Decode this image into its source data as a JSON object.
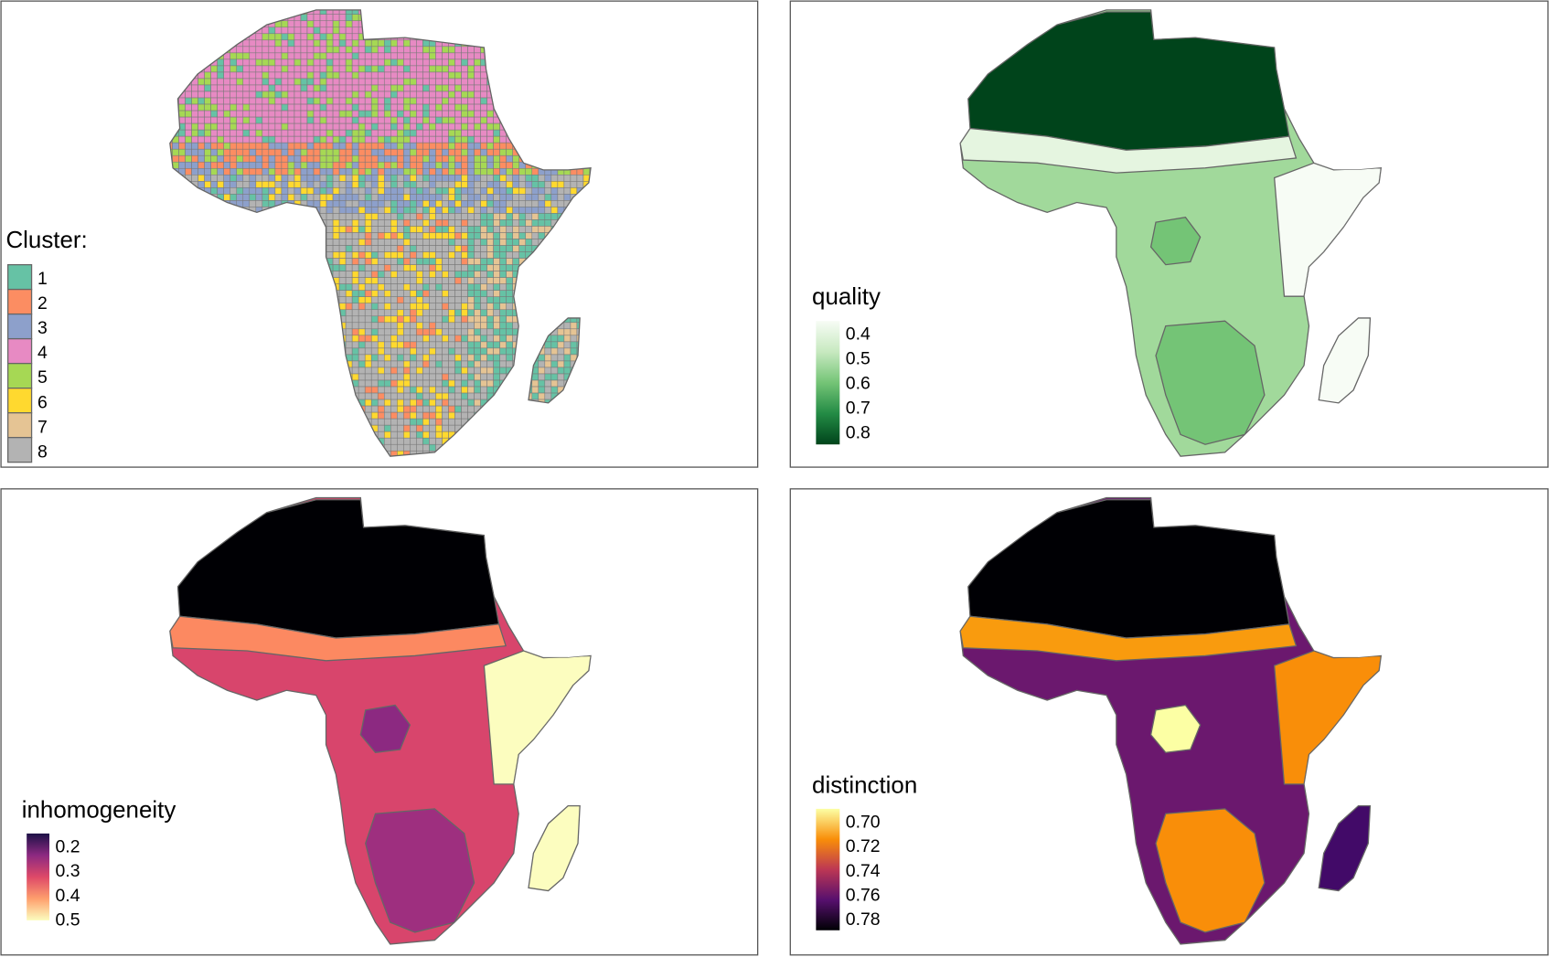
{
  "panels": {
    "cluster": {
      "legend_title": "Cluster:",
      "items": [
        {
          "label": "1",
          "color": "#66c2a5"
        },
        {
          "label": "2",
          "color": "#fc8d62"
        },
        {
          "label": "3",
          "color": "#8da0cb"
        },
        {
          "label": "4",
          "color": "#e78ac3"
        },
        {
          "label": "5",
          "color": "#a6d854"
        },
        {
          "label": "6",
          "color": "#ffd92f"
        },
        {
          "label": "7",
          "color": "#e5c494"
        },
        {
          "label": "8",
          "color": "#b3b3b3"
        }
      ]
    },
    "quality": {
      "legend_title": "quality",
      "ticks": [
        "0.4",
        "0.5",
        "0.6",
        "0.7",
        "0.8"
      ],
      "colors": [
        "#f7fcf5",
        "#c7e9c0",
        "#74c476",
        "#238b45",
        "#00441b"
      ]
    },
    "inhomogeneity": {
      "legend_title": "inhomogeneity",
      "ticks": [
        "0.2",
        "0.3",
        "0.4",
        "0.5"
      ],
      "colors": [
        "#1d1147",
        "#8c2981",
        "#de4968",
        "#fe9f6d",
        "#fcfdbf"
      ]
    },
    "distinction": {
      "legend_title": "distinction",
      "ticks": [
        "0.70",
        "0.72",
        "0.74",
        "0.76",
        "0.78"
      ],
      "colors": [
        "#fcffa4",
        "#f98e09",
        "#bc3754",
        "#57106e",
        "#000004"
      ]
    }
  }
}
